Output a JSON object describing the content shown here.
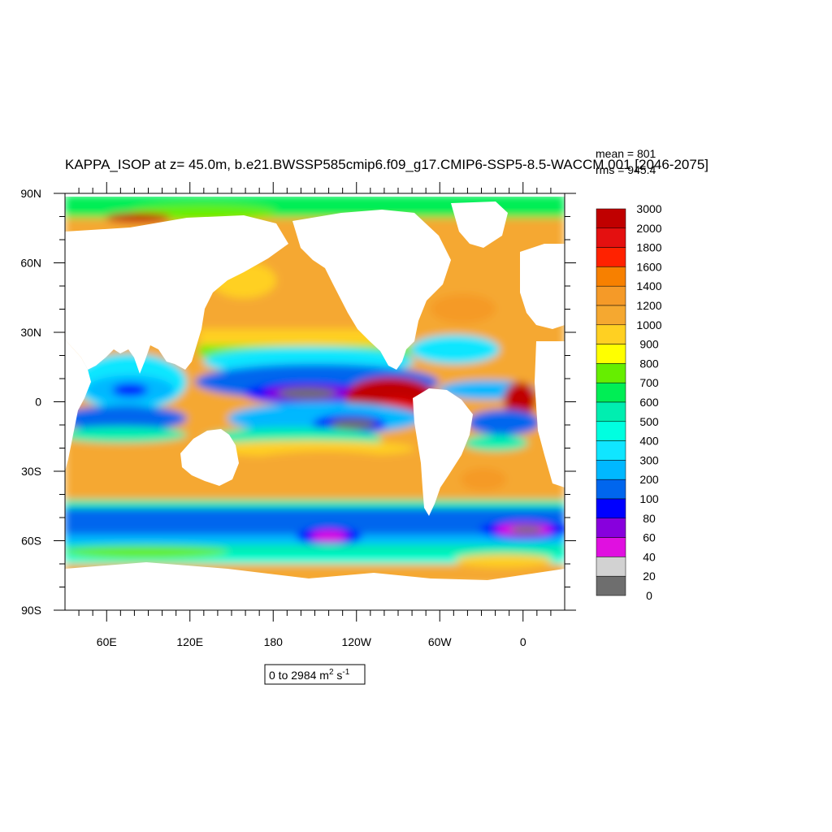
{
  "chart_data": {
    "type": "heatmap",
    "title": "KAPPA_ISOP at z=  45.0m, b.e21.BWSSP585cmip6.f09_g17.CMIP6-SSP5-8.5-WACCM.001 [2046-2075]",
    "stats": {
      "mean": "mean = 801",
      "rms": "rms = 945.4"
    },
    "lat_ticks": [
      "90N",
      "60N",
      "30N",
      "0",
      "30S",
      "60S",
      "90S"
    ],
    "lon_ticks": [
      "60E",
      "120E",
      "180",
      "120W",
      "60W",
      "0"
    ],
    "range_label": {
      "text": "0 to 2984 m",
      "unit_sup": "2",
      "unit_s": " s",
      "unit_s_sup": "-1"
    },
    "colorbar": {
      "labels": [
        "3000",
        "2000",
        "1800",
        "1600",
        "1400",
        "1200",
        "1000",
        "900",
        "800",
        "700",
        "600",
        "500",
        "400",
        "300",
        "200",
        "100",
        "80",
        "60",
        "40",
        "20",
        "0"
      ],
      "colors": [
        "#c00000",
        "#e41010",
        "#ff2200",
        "#f78000",
        "#f59a28",
        "#f5a830",
        "#ffd022",
        "#ffff00",
        "#66ee00",
        "#00ee55",
        "#00eeb0",
        "#00ffe0",
        "#10e6ff",
        "#00b8ff",
        "#0066ee",
        "#0000ff",
        "#8800dd",
        "#e010e0",
        "#d2d2d2",
        "#6e6e6e"
      ]
    }
  }
}
